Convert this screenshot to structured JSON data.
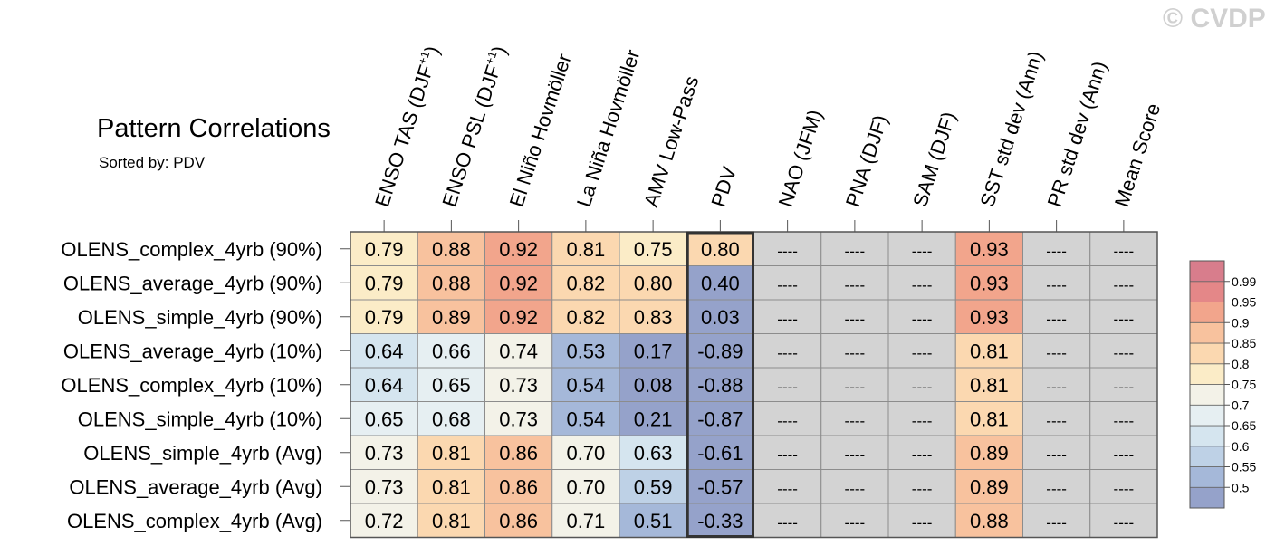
{
  "watermark": "© CVDP",
  "title": "Pattern Correlations",
  "subtitle": "Sorted by: PDV",
  "colors": {
    "missing": "#d3d3d3",
    "highlight_border": "#333333",
    "grid": "#8c8c8c",
    "scale": [
      "#95a2ca",
      "#a5b8d9",
      "#bed1e6",
      "#d5e5ef",
      "#e6eff2",
      "#f3f2e8",
      "#fbecc7",
      "#fbd8b0",
      "#f8c29e",
      "#f2a58c",
      "#e48788",
      "#d87d8c"
    ]
  },
  "chart_data": {
    "type": "heatmap",
    "title": "Pattern Correlations",
    "subtitle": "Sorted by: PDV",
    "columns": [
      "ENSO TAS (DJF+1)",
      "ENSO PSL (DJF+1)",
      "El Niño Hovmöller",
      "La Niña Hovmöller",
      "AMV Low-Pass",
      "PDV",
      "NAO (JFM)",
      "PNA (DJF)",
      "SAM (DJF)",
      "SST std dev (Ann)",
      "PR std dev (Ann)",
      "Mean Score"
    ],
    "column_labels": [
      {
        "text": "ENSO TAS (DJF",
        "sup": "+1",
        "tail": ")"
      },
      {
        "text": "ENSO PSL (DJF",
        "sup": "+1",
        "tail": ")"
      },
      {
        "text": "El Niño Hovmöller",
        "sup": "",
        "tail": ""
      },
      {
        "text": "La Niña Hovmöller",
        "sup": "",
        "tail": ""
      },
      {
        "text": "AMV Low-Pass",
        "sup": "",
        "tail": ""
      },
      {
        "text": "PDV",
        "sup": "",
        "tail": ""
      },
      {
        "text": "NAO (JFM)",
        "sup": "",
        "tail": ""
      },
      {
        "text": "PNA (DJF)",
        "sup": "",
        "tail": ""
      },
      {
        "text": "SAM (DJF)",
        "sup": "",
        "tail": ""
      },
      {
        "text": "SST std dev (Ann)",
        "sup": "",
        "tail": ""
      },
      {
        "text": "PR std dev (Ann)",
        "sup": "",
        "tail": ""
      },
      {
        "text": "Mean Score",
        "sup": "",
        "tail": ""
      }
    ],
    "rows": [
      "OLENS_complex_4yrb (90%)",
      "OLENS_average_4yrb (90%)",
      "OLENS_simple_4yrb (90%)",
      "OLENS_average_4yrb (10%)",
      "OLENS_complex_4yrb (10%)",
      "OLENS_simple_4yrb (10%)",
      "OLENS_simple_4yrb (Avg)",
      "OLENS_average_4yrb (Avg)",
      "OLENS_complex_4yrb (Avg)"
    ],
    "values": [
      [
        "0.79",
        "0.88",
        "0.92",
        "0.81",
        "0.75",
        "0.80",
        "----",
        "----",
        "----",
        "0.93",
        "----",
        "----"
      ],
      [
        "0.79",
        "0.88",
        "0.92",
        "0.82",
        "0.80",
        "0.40",
        "----",
        "----",
        "----",
        "0.93",
        "----",
        "----"
      ],
      [
        "0.79",
        "0.89",
        "0.92",
        "0.82",
        "0.83",
        "0.03",
        "----",
        "----",
        "----",
        "0.93",
        "----",
        "----"
      ],
      [
        "0.64",
        "0.66",
        "0.74",
        "0.53",
        "0.17",
        "-0.89",
        "----",
        "----",
        "----",
        "0.81",
        "----",
        "----"
      ],
      [
        "0.64",
        "0.65",
        "0.73",
        "0.54",
        "0.08",
        "-0.88",
        "----",
        "----",
        "----",
        "0.81",
        "----",
        "----"
      ],
      [
        "0.65",
        "0.68",
        "0.73",
        "0.54",
        "0.21",
        "-0.87",
        "----",
        "----",
        "----",
        "0.81",
        "----",
        "----"
      ],
      [
        "0.73",
        "0.81",
        "0.86",
        "0.70",
        "0.63",
        "-0.61",
        "----",
        "----",
        "----",
        "0.89",
        "----",
        "----"
      ],
      [
        "0.73",
        "0.81",
        "0.86",
        "0.70",
        "0.59",
        "-0.57",
        "----",
        "----",
        "----",
        "0.89",
        "----",
        "----"
      ],
      [
        "0.72",
        "0.81",
        "0.86",
        "0.71",
        "0.51",
        "-0.33",
        "----",
        "----",
        "----",
        "0.88",
        "----",
        "----"
      ]
    ],
    "missing_value": "----",
    "sorted_by": "PDV",
    "highlight_column": 5,
    "colorbar": {
      "ticks": [
        "0.99",
        "0.95",
        "0.9",
        "0.85",
        "0.8",
        "0.75",
        "0.7",
        "0.65",
        "0.6",
        "0.55",
        "0.5"
      ],
      "levels": [
        0.5,
        0.55,
        0.6,
        0.65,
        0.7,
        0.75,
        0.8,
        0.85,
        0.9,
        0.95,
        0.99
      ]
    }
  }
}
